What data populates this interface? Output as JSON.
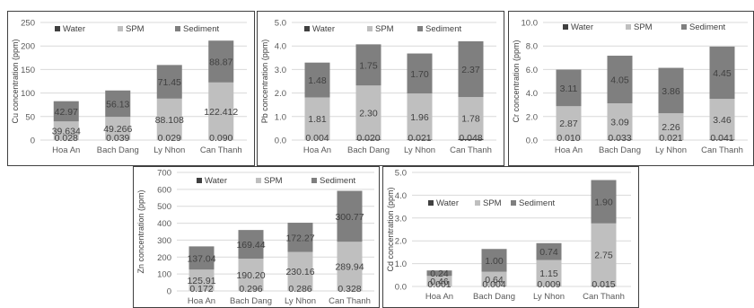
{
  "colors": {
    "water": "#404040",
    "spm": "#bfbfbf",
    "sediment": "#7f7f7f"
  },
  "chart_data": [
    {
      "type": "bar",
      "stacked": true,
      "categories": [
        "Hoa An",
        "Bach Dang",
        "Ly Nhon",
        "Can Thanh"
      ],
      "ylabel": "Cu concentration (ppm)",
      "ylim": [
        0,
        250
      ],
      "yticks": [
        "0",
        "50",
        "100",
        "150",
        "200",
        "250"
      ],
      "legend": [
        "Water",
        "SPM",
        "Sediment"
      ],
      "series": [
        {
          "name": "Water",
          "values": [
            0.028,
            0.039,
            0.029,
            0.09
          ],
          "labels": [
            "0.028",
            "0.039",
            "0.029",
            "0.090"
          ]
        },
        {
          "name": "SPM",
          "values": [
            39.634,
            49.266,
            88.108,
            122.412
          ],
          "labels": [
            "39.634",
            "49.266",
            "88.108",
            "122.412"
          ]
        },
        {
          "name": "Sediment",
          "values": [
            42.97,
            56.13,
            71.45,
            88.87
          ],
          "labels": [
            "42.97",
            "56.13",
            "71.45",
            "88.87"
          ]
        }
      ]
    },
    {
      "type": "bar",
      "stacked": true,
      "categories": [
        "Hoa An",
        "Bach Dang",
        "Ly Nhon",
        "Can Thanh"
      ],
      "ylabel": "Pb concentration (ppm)",
      "ylim": [
        0,
        5
      ],
      "yticks": [
        "0.0",
        "1.0",
        "2.0",
        "3.0",
        "4.0",
        "5.0"
      ],
      "legend": [
        "Water",
        "SPM",
        "Sediment"
      ],
      "series": [
        {
          "name": "Water",
          "values": [
            0.004,
            0.02,
            0.021,
            0.048
          ],
          "labels": [
            "0.004",
            "0.020",
            "0.021",
            "0.048"
          ]
        },
        {
          "name": "SPM",
          "values": [
            1.81,
            2.3,
            1.96,
            1.78
          ],
          "labels": [
            "1.81",
            "2.30",
            "1.96",
            "1.78"
          ]
        },
        {
          "name": "Sediment",
          "values": [
            1.48,
            1.75,
            1.7,
            2.37
          ],
          "labels": [
            "1.48",
            "1.75",
            "1.70",
            "2.37"
          ]
        }
      ]
    },
    {
      "type": "bar",
      "stacked": true,
      "categories": [
        "Hoa An",
        "Bach Dang",
        "Ly Nhon",
        "Can Thanh"
      ],
      "ylabel": "Cr concentration (ppm)",
      "ylim": [
        0,
        10
      ],
      "yticks": [
        "0.0",
        "2.0",
        "4.0",
        "6.0",
        "8.0",
        "10.0"
      ],
      "legend": [
        "Water",
        "SPM",
        "Sediment"
      ],
      "series": [
        {
          "name": "Water",
          "values": [
            0.01,
            0.033,
            0.021,
            0.041
          ],
          "labels": [
            "0.010",
            "0.033",
            "0.021",
            "0.041"
          ]
        },
        {
          "name": "SPM",
          "values": [
            2.87,
            3.09,
            2.26,
            3.46
          ],
          "labels": [
            "2.87",
            "3.09",
            "2.26",
            "3.46"
          ]
        },
        {
          "name": "Sediment",
          "values": [
            3.11,
            4.05,
            3.86,
            4.45
          ],
          "labels": [
            "3.11",
            "4.05",
            "3.86",
            "4.45"
          ]
        }
      ]
    },
    {
      "type": "bar",
      "stacked": true,
      "categories": [
        "Hoa An",
        "Bach Dang",
        "Ly Nhon",
        "Can Thanh"
      ],
      "ylabel": "Zn concentration (ppm)",
      "ylim": [
        0,
        700
      ],
      "yticks": [
        "0",
        "100",
        "200",
        "300",
        "400",
        "500",
        "600",
        "700"
      ],
      "legend": [
        "Water",
        "SPM",
        "Sediment"
      ],
      "series": [
        {
          "name": "Water",
          "values": [
            0.172,
            0.296,
            0.286,
            0.328
          ],
          "labels": [
            "0.172",
            "0.296",
            "0.286",
            "0.328"
          ]
        },
        {
          "name": "SPM",
          "values": [
            125.91,
            190.2,
            230.16,
            289.94
          ],
          "labels": [
            "125.91",
            "190.20",
            "230.16",
            "289.94"
          ]
        },
        {
          "name": "Sediment",
          "values": [
            137.04,
            169.44,
            172.27,
            300.77
          ],
          "labels": [
            "137.04",
            "169.44",
            "172.27",
            "300.77"
          ]
        }
      ]
    },
    {
      "type": "bar",
      "stacked": true,
      "categories": [
        "Hoa An",
        "Bach Dang",
        "Ly Nhon",
        "Can Thanh"
      ],
      "ylabel": "Cd concentration (ppm)",
      "ylim": [
        0,
        5
      ],
      "yticks": [
        "0.0",
        "1.0",
        "2.0",
        "3.0",
        "4.0",
        "5.0"
      ],
      "legend": [
        "Water",
        "SPM",
        "Sediment"
      ],
      "series": [
        {
          "name": "Water",
          "values": [
            0.001,
            0.004,
            0.009,
            0.015
          ],
          "labels": [
            "0.001",
            "0.004",
            "0.009",
            "0.015"
          ]
        },
        {
          "name": "SPM",
          "values": [
            0.46,
            0.64,
            1.15,
            2.75
          ],
          "labels": [
            "0.46",
            "0.64",
            "1.15",
            "2.75"
          ]
        },
        {
          "name": "Sediment",
          "values": [
            0.24,
            1.0,
            0.74,
            1.9
          ],
          "labels": [
            "0.24",
            "1.00",
            "0.74",
            "1.90"
          ]
        }
      ]
    }
  ]
}
